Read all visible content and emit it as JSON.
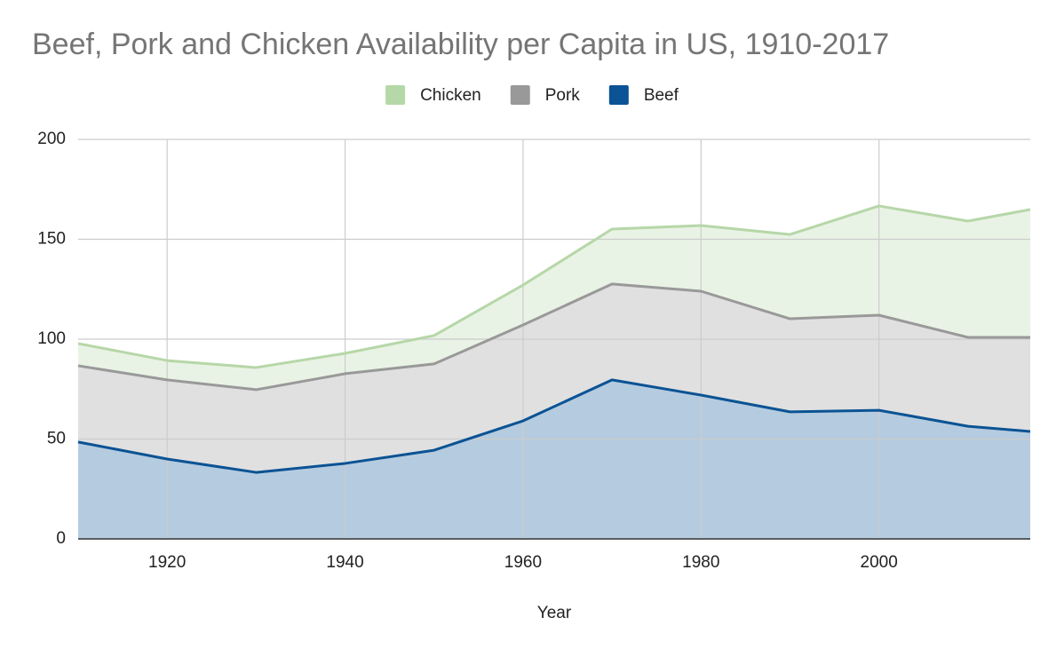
{
  "chart_data": {
    "type": "area",
    "stacked": true,
    "title": "Beef, Pork and Chicken Availability per Capita in US, 1910-2017",
    "x_label": "Year",
    "x": [
      1910,
      1920,
      1930,
      1940,
      1950,
      1960,
      1970,
      1980,
      1990,
      2000,
      2010,
      2017
    ],
    "series": [
      {
        "name": "Chicken",
        "color": "#b6d7a8",
        "values": [
          11.1,
          9.7,
          11.1,
          10.2,
          14.2,
          20,
          27.5,
          32.9,
          42.2,
          54.7,
          58.2,
          64
        ]
      },
      {
        "name": "Pork",
        "color": "#999999",
        "values": [
          38.2,
          39.6,
          41.4,
          44.9,
          43.2,
          48,
          48,
          52,
          46.6,
          47.6,
          44.5,
          47.1
        ]
      },
      {
        "name": "Beef",
        "color": "#0b5394",
        "values": [
          48.5,
          40,
          33.3,
          37.8,
          44.4,
          59.1,
          79.6,
          72,
          63.6,
          64.4,
          56.4,
          53.8
        ]
      }
    ],
    "xlim": [
      1910,
      2017
    ],
    "xticks": [
      1920,
      1940,
      1960,
      1980,
      2000
    ],
    "ylim": [
      0,
      200
    ],
    "yticks": [
      0,
      50,
      100,
      150,
      200
    ],
    "grid": true,
    "legend": "top"
  }
}
